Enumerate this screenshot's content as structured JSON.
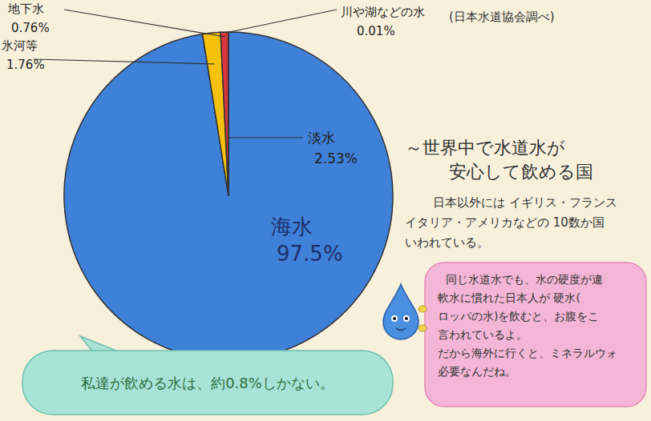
{
  "chart_data": {
    "type": "pie",
    "source": "(日本水道協会調べ)",
    "categories": [
      "海水",
      "氷河等",
      "地下水",
      "川や湖などの水"
    ],
    "values": [
      97.5,
      1.76,
      0.76,
      0.01
    ],
    "value_labels": [
      "97.5%",
      "1.76%",
      "0.76%",
      "0.01%"
    ],
    "colors": [
      "#3f80d8",
      "#f4c20d",
      "#d9363e",
      "#a8232d"
    ],
    "group": {
      "name": "淡水",
      "value": 2.53,
      "label": "2.53%"
    },
    "annotations": {
      "heading": [
        "～世界中で水道水が",
        "安心して飲める国"
      ],
      "body": [
        "日本以外には イギリス・フランス",
        "イタリア・アメリカなどの 10数か国",
        "いわれている。"
      ],
      "note": [
        "同じ水道水でも、水の硬度が違",
        "軟水に慣れた日本人が 硬水(",
        "ロッパの水)を飲むと、お腹をこ",
        "言われているよ。",
        "だから海外に行くと、ミネラルウォ",
        "必要なんだね。"
      ],
      "bubble": "私達が飲める水は、約0.8%しかない。"
    }
  }
}
